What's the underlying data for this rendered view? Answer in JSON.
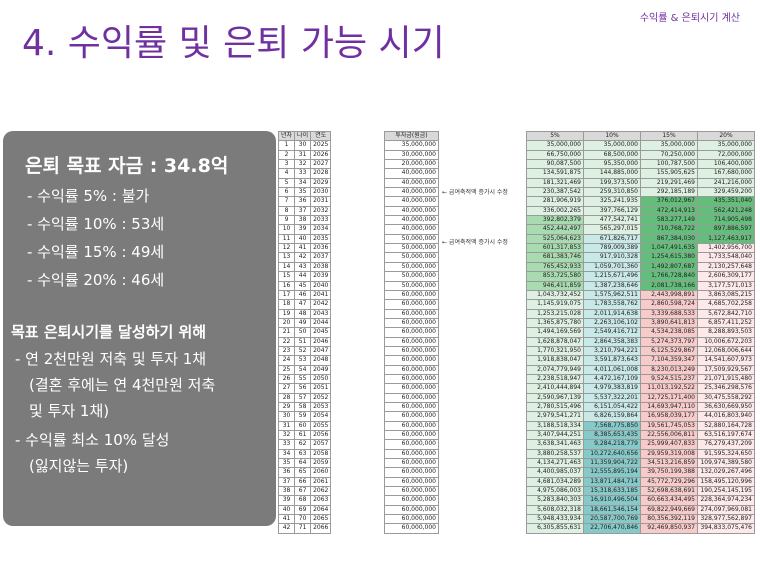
{
  "header": {
    "title": "4. 수익률 및 은퇴 가능 시기",
    "subtitle": "수익률 & 은퇴시기 계산"
  },
  "panel": {
    "goal": "은퇴 목표 자금 : 34.8억",
    "rates": [
      "- 수익률   5% : 불가",
      "- 수익률 10% : 53세",
      "- 수익률 15% : 49세",
      "- 수익률 20% : 46세"
    ],
    "plan_heading": "목표 은퇴시기를 달성하기 위해",
    "step1": "- 연 2천만원 저축 및 투자 1채",
    "step1_cont_a": "(결혼 후에는 연 4천만원 저축",
    "step1_cont_b": "및 투자 1채)",
    "step2": "- 수익률 최소 10% 달성",
    "step2_cont": "(잃지않는 투자)"
  },
  "notes": [
    "← 급여축적액 증가시 수정",
    "← 급여축적액 증가시 수정"
  ],
  "table": {
    "headers": [
      "년차",
      "나이",
      "연도",
      "투자금(원금)",
      "5%",
      "10%",
      "15%",
      "20%"
    ],
    "colors": {
      "header_bg": "#d9d9d9",
      "green_dark": "#63be7b",
      "green_mid": "#a9dbb0",
      "green_light": "#ddf0e1",
      "teal": "#86c9c9",
      "teal_light": "#c9e8e8",
      "pink": "#f8cbcb",
      "pink_light": "#fde9e9"
    },
    "rows": [
      [
        "1",
        "30",
        "2025",
        "35,000,000",
        "35,000,000",
        "35,000,000",
        "35,000,000",
        "35,000,000"
      ],
      [
        "2",
        "31",
        "2026",
        "30,000,000",
        "66,750,000",
        "68,500,000",
        "70,250,000",
        "72,000,000"
      ],
      [
        "3",
        "32",
        "2027",
        "20,000,000",
        "90,087,500",
        "95,350,000",
        "100,787,500",
        "106,400,000"
      ],
      [
        "4",
        "33",
        "2028",
        "40,000,000",
        "134,591,875",
        "144,885,000",
        "155,905,625",
        "167,680,000"
      ],
      [
        "5",
        "34",
        "2029",
        "40,000,000",
        "181,321,469",
        "199,373,500",
        "219,291,469",
        "241,216,000"
      ],
      [
        "6",
        "35",
        "2030",
        "40,000,000",
        "230,387,542",
        "259,310,850",
        "292,185,189",
        "329,459,200"
      ],
      [
        "7",
        "36",
        "2031",
        "40,000,000",
        "281,906,919",
        "325,241,935",
        "376,012,967",
        "435,351,040"
      ],
      [
        "8",
        "37",
        "2032",
        "40,000,000",
        "336,002,265",
        "397,766,129",
        "472,414,913",
        "562,421,248"
      ],
      [
        "9",
        "38",
        "2033",
        "40,000,000",
        "392,802,379",
        "477,542,741",
        "583,277,149",
        "714,905,498"
      ],
      [
        "10",
        "39",
        "2034",
        "40,000,000",
        "452,442,497",
        "565,297,015",
        "710,768,722",
        "897,886,597"
      ],
      [
        "11",
        "40",
        "2035",
        "50,000,000",
        "525,064,623",
        "671,826,717",
        "867,384,030",
        "1,127,463,917"
      ],
      [
        "12",
        "41",
        "2036",
        "50,000,000",
        "601,317,853",
        "789,009,389",
        "1,047,491,635",
        "1,402,956,700"
      ],
      [
        "13",
        "42",
        "2037",
        "50,000,000",
        "681,383,746",
        "917,910,328",
        "1,254,615,380",
        "1,733,548,040"
      ],
      [
        "14",
        "43",
        "2038",
        "50,000,000",
        "765,452,933",
        "1,059,701,360",
        "1,492,807,687",
        "2,130,257,648"
      ],
      [
        "15",
        "44",
        "2039",
        "50,000,000",
        "853,725,580",
        "1,215,671,496",
        "1,766,728,840",
        "2,606,309,177"
      ],
      [
        "16",
        "45",
        "2040",
        "50,000,000",
        "946,411,859",
        "1,387,238,646",
        "2,081,738,166",
        "3,177,571,013"
      ],
      [
        "17",
        "46",
        "2041",
        "60,000,000",
        "1,043,732,452",
        "1,575,962,511",
        "2,443,998,891",
        "3,863,085,215"
      ],
      [
        "18",
        "47",
        "2042",
        "60,000,000",
        "1,145,919,075",
        "1,783,558,762",
        "2,860,598,724",
        "4,685,702,258"
      ],
      [
        "19",
        "48",
        "2043",
        "60,000,000",
        "1,253,215,028",
        "2,011,914,638",
        "3,339,688,533",
        "5,672,842,710"
      ],
      [
        "20",
        "49",
        "2044",
        "60,000,000",
        "1,365,875,780",
        "2,263,106,102",
        "3,890,641,813",
        "6,857,411,252"
      ],
      [
        "21",
        "50",
        "2045",
        "60,000,000",
        "1,494,169,569",
        "2,549,416,712",
        "4,534,238,085",
        "8,288,893,503"
      ],
      [
        "22",
        "51",
        "2046",
        "60,000,000",
        "1,628,878,047",
        "2,864,358,383",
        "5,274,373,797",
        "10,006,672,203"
      ],
      [
        "23",
        "52",
        "2047",
        "60,000,000",
        "1,770,321,950",
        "3,210,794,221",
        "6,125,529,867",
        "12,068,006,644"
      ],
      [
        "24",
        "53",
        "2048",
        "60,000,000",
        "1,918,838,047",
        "3,591,873,643",
        "7,104,359,347",
        "14,541,607,973"
      ],
      [
        "25",
        "54",
        "2049",
        "60,000,000",
        "2,074,779,949",
        "4,011,061,008",
        "8,230,013,249",
        "17,509,929,567"
      ],
      [
        "26",
        "55",
        "2050",
        "60,000,000",
        "2,238,518,947",
        "4,472,167,109",
        "9,524,515,237",
        "21,071,915,480"
      ],
      [
        "27",
        "56",
        "2051",
        "60,000,000",
        "2,410,444,894",
        "4,979,383,819",
        "11,013,192,522",
        "25,346,298,576"
      ],
      [
        "28",
        "57",
        "2052",
        "60,000,000",
        "2,590,967,139",
        "5,537,322,201",
        "12,725,171,400",
        "30,475,558,292"
      ],
      [
        "29",
        "58",
        "2053",
        "60,000,000",
        "2,780,515,496",
        "6,151,054,422",
        "14,693,947,110",
        "36,630,669,950"
      ],
      [
        "30",
        "59",
        "2054",
        "60,000,000",
        "2,979,541,271",
        "6,826,159,864",
        "16,958,039,177",
        "44,016,803,940"
      ],
      [
        "31",
        "60",
        "2055",
        "60,000,000",
        "3,188,518,334",
        "7,568,775,850",
        "19,561,745,053",
        "52,880,164,728"
      ],
      [
        "32",
        "61",
        "2056",
        "60,000,000",
        "3,407,944,251",
        "8,385,653,435",
        "22,556,006,811",
        "63,516,197,674"
      ],
      [
        "33",
        "62",
        "2057",
        "60,000,000",
        "3,638,341,463",
        "9,284,218,779",
        "25,999,407,833",
        "76,279,437,209"
      ],
      [
        "34",
        "63",
        "2058",
        "60,000,000",
        "3,880,258,537",
        "10,272,640,656",
        "29,959,319,008",
        "91,595,324,650"
      ],
      [
        "35",
        "64",
        "2059",
        "60,000,000",
        "4,134,271,463",
        "11,359,904,722",
        "34,513,216,859",
        "109,974,389,580"
      ],
      [
        "36",
        "65",
        "2060",
        "60,000,000",
        "4,400,985,037",
        "12,555,895,194",
        "39,750,199,388",
        "132,029,267,496"
      ],
      [
        "37",
        "66",
        "2061",
        "60,000,000",
        "4,681,034,289",
        "13,871,484,714",
        "45,772,729,296",
        "158,495,120,996"
      ],
      [
        "38",
        "67",
        "2062",
        "60,000,000",
        "4,975,086,003",
        "15,318,633,185",
        "52,698,638,691",
        "190,254,145,195"
      ],
      [
        "39",
        "68",
        "2063",
        "60,000,000",
        "5,283,840,303",
        "16,910,496,504",
        "60,663,434,495",
        "228,364,974,234"
      ],
      [
        "40",
        "69",
        "2064",
        "60,000,000",
        "5,608,032,318",
        "18,661,546,154",
        "69,822,949,669",
        "274,097,969,081"
      ],
      [
        "41",
        "70",
        "2065",
        "60,000,000",
        "5,948,433,934",
        "20,587,700,769",
        "80,356,392,119",
        "328,977,562,897"
      ],
      [
        "42",
        "71",
        "2066",
        "60,000,000",
        "6,305,855,631",
        "22,706,470,846",
        "92,469,850,937",
        "394,833,075,476"
      ]
    ]
  }
}
